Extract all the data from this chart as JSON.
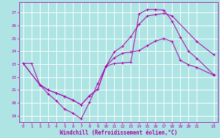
{
  "xlabel": "Windchill (Refroidissement éolien,°C)",
  "bg_color": "#aee4e4",
  "grid_color": "#ffffff",
  "line_color": "#aa00aa",
  "xlim": [
    -0.5,
    23.5
  ],
  "ylim": [
    18.5,
    27.8
  ],
  "xticks": [
    0,
    1,
    2,
    3,
    4,
    5,
    6,
    7,
    8,
    9,
    10,
    11,
    12,
    13,
    14,
    15,
    16,
    17,
    18,
    19,
    20,
    21,
    23
  ],
  "yticks": [
    19,
    20,
    21,
    22,
    23,
    24,
    25,
    26,
    27
  ],
  "curve1_x": [
    0,
    1,
    2,
    3,
    4,
    5,
    6,
    7,
    8,
    9,
    10,
    11,
    12,
    13,
    14,
    15,
    16,
    17,
    18,
    19,
    20,
    21,
    23
  ],
  "curve1_y": [
    23.05,
    23.05,
    21.4,
    20.7,
    20.15,
    19.5,
    19.2,
    18.75,
    20.05,
    21.5,
    22.85,
    23.05,
    23.1,
    23.15,
    26.9,
    27.25,
    27.25,
    27.2,
    26.35,
    25.1,
    24.0,
    23.45,
    22.2
  ],
  "curve2_x": [
    0,
    2,
    3,
    4,
    5,
    6,
    7,
    8,
    9,
    10,
    11,
    12,
    13,
    14,
    15,
    16,
    17,
    18,
    21,
    23
  ],
  "curve2_y": [
    23.05,
    21.4,
    21.0,
    20.75,
    20.5,
    20.2,
    19.85,
    20.55,
    21.05,
    22.85,
    23.95,
    24.4,
    25.15,
    26.1,
    26.75,
    26.85,
    26.95,
    26.75,
    24.75,
    23.75
  ],
  "curve3_x": [
    0,
    2,
    3,
    4,
    5,
    6,
    7,
    8,
    9,
    10,
    11,
    12,
    13,
    14,
    15,
    16,
    17,
    18,
    19,
    20,
    21,
    23
  ],
  "curve3_y": [
    23.05,
    21.4,
    21.0,
    20.75,
    20.5,
    20.2,
    19.85,
    20.55,
    21.05,
    22.85,
    23.5,
    23.85,
    23.95,
    24.05,
    24.45,
    24.8,
    25.0,
    24.75,
    23.3,
    22.95,
    22.75,
    22.15
  ]
}
